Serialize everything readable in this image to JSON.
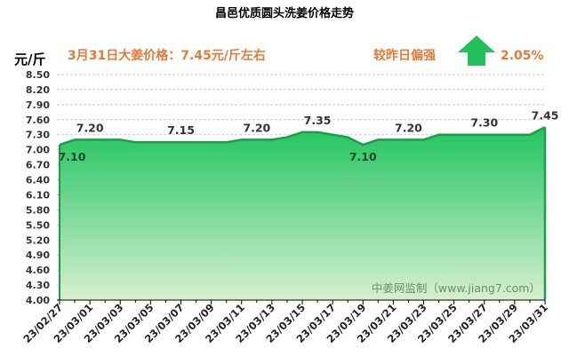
{
  "header": {
    "title": "昌邑优质圆头洗姜价格走势",
    "unit": "元/斤",
    "price_text": "3月31日大姜价格：7.45元/斤左右",
    "compare_text": "较昨日偏强",
    "change_pct": "2.05%",
    "arrow_icon": "up-arrow-icon",
    "arrow_color": "#22c05a"
  },
  "watermark": "中姜网监制（www.jiang7.com）",
  "chart_data": {
    "type": "area",
    "title": "昌邑优质圆头洗姜价格走势",
    "ylabel": "元/斤",
    "ylim": [
      4.0,
      8.5
    ],
    "yticks": [
      "4.00",
      "4.30",
      "4.60",
      "4.90",
      "5.20",
      "5.50",
      "5.80",
      "6.10",
      "6.40",
      "6.70",
      "7.00",
      "7.30",
      "7.60",
      "7.90",
      "8.20",
      "8.50"
    ],
    "grid": "horizontal-dashed",
    "fill_color": "#2ecc71",
    "line_color": "#1a9e4c",
    "x": [
      "23/02/27",
      "23/02/28",
      "23/03/01",
      "23/03/02",
      "23/03/03",
      "23/03/04",
      "23/03/05",
      "23/03/06",
      "23/03/07",
      "23/03/08",
      "23/03/09",
      "23/03/10",
      "23/03/11",
      "23/03/12",
      "23/03/13",
      "23/03/14",
      "23/03/15",
      "23/03/16",
      "23/03/17",
      "23/03/18",
      "23/03/19",
      "23/03/20",
      "23/03/21",
      "23/03/22",
      "23/03/23",
      "23/03/24",
      "23/03/25",
      "23/03/26",
      "23/03/27",
      "23/03/28",
      "23/03/29",
      "23/03/30",
      "23/03/31"
    ],
    "xtick_labels": [
      "23/02/27",
      "23/03/01",
      "23/03/03",
      "23/03/05",
      "23/03/07",
      "23/03/09",
      "23/03/11",
      "23/03/13",
      "23/03/15",
      "23/03/17",
      "23/03/19",
      "23/03/21",
      "23/03/23",
      "23/03/25",
      "23/03/27",
      "23/03/29",
      "23/03/31"
    ],
    "values": [
      7.1,
      7.2,
      7.2,
      7.2,
      7.2,
      7.15,
      7.15,
      7.15,
      7.15,
      7.15,
      7.15,
      7.15,
      7.2,
      7.2,
      7.2,
      7.25,
      7.35,
      7.35,
      7.3,
      7.25,
      7.1,
      7.2,
      7.2,
      7.2,
      7.2,
      7.3,
      7.3,
      7.3,
      7.3,
      7.3,
      7.3,
      7.3,
      7.45
    ],
    "data_labels": [
      {
        "x": "23/02/27",
        "text": "7.10",
        "pos": "below"
      },
      {
        "x": "23/03/01",
        "text": "7.20",
        "pos": "above"
      },
      {
        "x": "23/03/07",
        "text": "7.15",
        "pos": "above"
      },
      {
        "x": "23/03/12",
        "text": "7.20",
        "pos": "above"
      },
      {
        "x": "23/03/16",
        "text": "7.35",
        "pos": "above"
      },
      {
        "x": "23/03/19",
        "text": "7.10",
        "pos": "below"
      },
      {
        "x": "23/03/22",
        "text": "7.20",
        "pos": "above"
      },
      {
        "x": "23/03/27",
        "text": "7.30",
        "pos": "above"
      },
      {
        "x": "23/03/31",
        "text": "7.45",
        "pos": "above"
      }
    ]
  }
}
